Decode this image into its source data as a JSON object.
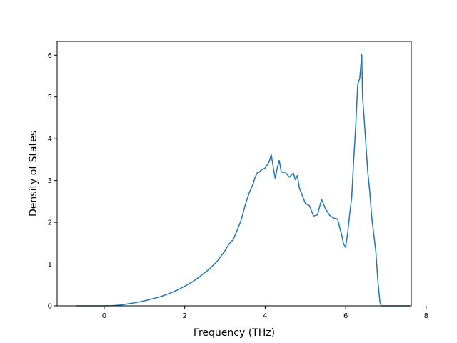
{
  "chart_data": {
    "type": "line",
    "title": "",
    "xlabel": "Frequency (THz)",
    "ylabel": "Density of States",
    "xlim": [
      -1.17,
      7.63
    ],
    "ylim": [
      0,
      6.33
    ],
    "xticks": [
      0,
      2,
      4,
      6,
      8
    ],
    "yticks": [
      0,
      1,
      2,
      3,
      4,
      5,
      6
    ],
    "grid": false,
    "legend": "none",
    "line_color": "#1f77b4",
    "series": [
      {
        "x": [
          -0.7,
          -0.2,
          0.0,
          0.2,
          0.4,
          0.6,
          0.8,
          1.0,
          1.2,
          1.4,
          1.6,
          1.8,
          2.0,
          2.2,
          2.4,
          2.5,
          2.6,
          2.8,
          3.0,
          3.1,
          3.2,
          3.3,
          3.4,
          3.5,
          3.6,
          3.7,
          3.75,
          3.8,
          3.85,
          3.9,
          4.0,
          4.1,
          4.15,
          4.2,
          4.25,
          4.3,
          4.35,
          4.4,
          4.5,
          4.6,
          4.7,
          4.75,
          4.8,
          4.85,
          4.9,
          5.0,
          5.1,
          5.2,
          5.3,
          5.4,
          5.5,
          5.6,
          5.7,
          5.8,
          5.85,
          5.9,
          5.95,
          6.0,
          6.05,
          6.1,
          6.15,
          6.2,
          6.25,
          6.3,
          6.35,
          6.4,
          6.42,
          6.45,
          6.48,
          6.5,
          6.55,
          6.6,
          6.65,
          6.7,
          6.75,
          6.8,
          6.85,
          6.88,
          6.9,
          6.93,
          7.0,
          7.6
        ],
        "y": [
          0.0,
          0.0,
          0.0,
          0.005,
          0.02,
          0.05,
          0.08,
          0.12,
          0.17,
          0.22,
          0.29,
          0.37,
          0.47,
          0.58,
          0.72,
          0.8,
          0.87,
          1.06,
          1.32,
          1.48,
          1.58,
          1.8,
          2.05,
          2.4,
          2.7,
          2.92,
          3.08,
          3.18,
          3.2,
          3.25,
          3.3,
          3.45,
          3.62,
          3.32,
          3.05,
          3.3,
          3.48,
          3.2,
          3.2,
          3.08,
          3.18,
          3.02,
          3.12,
          2.82,
          2.7,
          2.45,
          2.4,
          2.15,
          2.18,
          2.55,
          2.32,
          2.17,
          2.1,
          2.08,
          1.88,
          1.7,
          1.48,
          1.4,
          1.75,
          2.2,
          2.6,
          3.5,
          4.3,
          5.3,
          5.45,
          6.02,
          5.0,
          4.6,
          4.2,
          3.9,
          3.2,
          2.72,
          2.1,
          1.7,
          1.3,
          0.6,
          0.1,
          0.01,
          0.0,
          0.0,
          0.0,
          0.0
        ]
      }
    ]
  }
}
